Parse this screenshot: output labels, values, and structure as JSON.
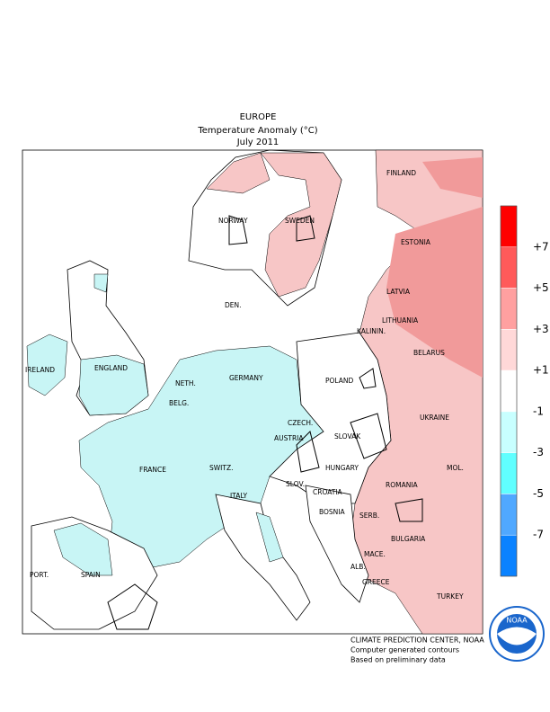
{
  "header": {
    "title": "EUROPE",
    "subtitle": "Temperature Anomaly (°C)",
    "period": "July 2011"
  },
  "labels": [
    "FINLAND",
    "NORWAY",
    "SWEDEN",
    "ESTONIA",
    "LATVIA",
    "DEN.",
    "LITHUANIA",
    "KALININ.",
    "BELARUS",
    "IRELAND",
    "ENGLAND",
    "NETH.",
    "GERMANY",
    "BELG.",
    "POLAND",
    "UKRAINE",
    "CZECH.",
    "SLOVAK",
    "AUSTRIA",
    "HUNGARY",
    "MOL.",
    "FRANCE",
    "SWITZ.",
    "SLOV.",
    "CROATIA",
    "ROMANIA",
    "ITALY",
    "BOSNIA",
    "SERB.",
    "BULGARIA",
    "PORT.",
    "SPAIN",
    "MACE.",
    "ALB.",
    "GREECE",
    "TURKEY"
  ],
  "legend": {
    "labels": [
      "+7",
      "+5",
      "+3",
      "+1",
      "-1",
      "-3",
      "-5",
      "-7"
    ],
    "colors": [
      "#ff0000",
      "#ff5a5a",
      "#ffa0a0",
      "#ffd8d8",
      "#ffffff",
      "#c8ffff",
      "#60ffff",
      "#50a8ff",
      "#0a82ff"
    ]
  },
  "footer": [
    "CLIMATE PREDICTION CENTER, NOAA",
    "Computer generated contours",
    "Based on preliminary data"
  ],
  "logo": "NOAA"
}
